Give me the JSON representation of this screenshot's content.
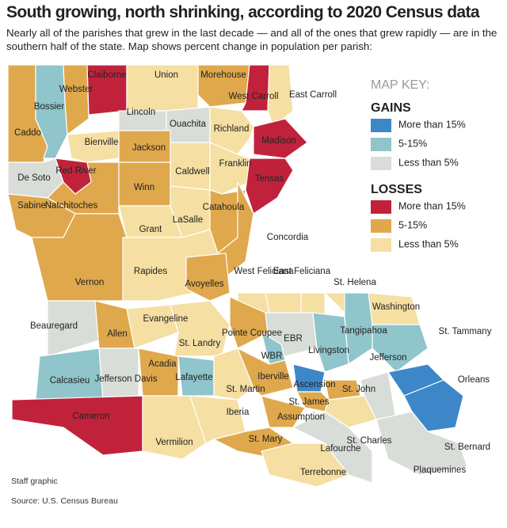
{
  "header": {
    "title": "South growing, north shrinking, according to 2020 Census data",
    "subtitle": "Nearly all of the parishes that grew in the last decade — and all of the ones that grew rapidly — are in the southern half of the state. Map shows percent change in population per parish:"
  },
  "key": {
    "title": "MAP KEY:",
    "groups": [
      {
        "title": "GAINS",
        "items": [
          {
            "label": "More than 15%",
            "color": "#3d87c9"
          },
          {
            "label": "5-15%",
            "color": "#8fc5cb"
          },
          {
            "label": "Less than 5%",
            "color": "#d9ddd8"
          }
        ]
      },
      {
        "title": "LOSSES",
        "items": [
          {
            "label": "More than 15%",
            "color": "#c1223b"
          },
          {
            "label": "5-15%",
            "color": "#dfa84c"
          },
          {
            "label": "Less than 5%",
            "color": "#f5dfa2"
          }
        ]
      }
    ]
  },
  "parishes": [
    {
      "name": "Caddo",
      "color": "#dfa84c"
    },
    {
      "name": "Bossier",
      "color": "#8fc5cb"
    },
    {
      "name": "Webster",
      "color": "#dfa84c"
    },
    {
      "name": "Claiborne",
      "color": "#c1223b"
    },
    {
      "name": "Union",
      "color": "#f5dfa2"
    },
    {
      "name": "Morehouse",
      "color": "#dfa84c"
    },
    {
      "name": "West Carroll",
      "color": "#c1223b"
    },
    {
      "name": "East Carroll",
      "color": "#f5dfa2"
    },
    {
      "name": "Lincoln",
      "color": "#d9ddd8"
    },
    {
      "name": "Ouachita",
      "color": "#d9ddd8"
    },
    {
      "name": "Richland",
      "color": "#f5dfa2"
    },
    {
      "name": "Madison",
      "color": "#c1223b"
    },
    {
      "name": "Bienville",
      "color": "#f5dfa2"
    },
    {
      "name": "Jackson",
      "color": "#dfa84c"
    },
    {
      "name": "Caldwell",
      "color": "#f5dfa2"
    },
    {
      "name": "Franklin",
      "color": "#f5dfa2"
    },
    {
      "name": "Tensas",
      "color": "#c1223b"
    },
    {
      "name": "De Soto",
      "color": "#d9ddd8"
    },
    {
      "name": "Natchitoches",
      "color": "#dfa84c"
    },
    {
      "name": "Red River",
      "color": "#c1223b"
    },
    {
      "name": "Winn",
      "color": "#dfa84c"
    },
    {
      "name": "Grant",
      "color": "#f5dfa2"
    },
    {
      "name": "LaSalle",
      "color": "#f5dfa2"
    },
    {
      "name": "Catahoula",
      "color": "#dfa84c"
    },
    {
      "name": "Concordia",
      "color": "#dfa84c"
    },
    {
      "name": "Sabine",
      "color": "#dfa84c"
    },
    {
      "name": "Vernon",
      "color": "#dfa84c"
    },
    {
      "name": "Rapides",
      "color": "#f5dfa2"
    },
    {
      "name": "Avoyelles",
      "color": "#dfa84c"
    },
    {
      "name": "West Feliciana",
      "color": "#f5dfa2"
    },
    {
      "name": "East Feliciana",
      "color": "#f5dfa2"
    },
    {
      "name": "St. Helena",
      "color": "#f5dfa2"
    },
    {
      "name": "Washington",
      "color": "#f5dfa2"
    },
    {
      "name": "Beauregard",
      "color": "#d9ddd8"
    },
    {
      "name": "Allen",
      "color": "#dfa84c"
    },
    {
      "name": "Evangeline",
      "color": "#f5dfa2"
    },
    {
      "name": "St. Landry",
      "color": "#f5dfa2"
    },
    {
      "name": "Pointe Coupee",
      "color": "#dfa84c"
    },
    {
      "name": "EBR",
      "color": "#d9ddd8"
    },
    {
      "name": "WBR",
      "color": "#8fc5cb"
    },
    {
      "name": "Livingston",
      "color": "#8fc5cb"
    },
    {
      "name": "Tangipahoa",
      "color": "#8fc5cb"
    },
    {
      "name": "St. Tammany",
      "color": "#8fc5cb"
    },
    {
      "name": "Calcasieu",
      "color": "#8fc5cb"
    },
    {
      "name": "Jefferson Davis",
      "color": "#d9ddd8"
    },
    {
      "name": "Acadia",
      "color": "#dfa84c"
    },
    {
      "name": "Lafayette",
      "color": "#8fc5cb"
    },
    {
      "name": "St. Martin",
      "color": "#f5dfa2"
    },
    {
      "name": "Iberville",
      "color": "#dfa84c"
    },
    {
      "name": "Ascension",
      "color": "#3d87c9"
    },
    {
      "name": "St. John",
      "color": "#dfa84c"
    },
    {
      "name": "St. James",
      "color": "#dfa84c"
    },
    {
      "name": "Cameron",
      "color": "#c1223b"
    },
    {
      "name": "Vermilion",
      "color": "#f5dfa2"
    },
    {
      "name": "Iberia",
      "color": "#f5dfa2"
    },
    {
      "name": "Assumption",
      "color": "#dfa84c"
    },
    {
      "name": "St. Charles",
      "color": "#f5dfa2"
    },
    {
      "name": "Jefferson",
      "color": "#d9ddd8"
    },
    {
      "name": "Orleans",
      "color": "#3d87c9"
    },
    {
      "name": "St. Bernard",
      "color": "#3d87c9"
    },
    {
      "name": "St. Mary",
      "color": "#dfa84c"
    },
    {
      "name": "Lafourche",
      "color": "#d9ddd8"
    },
    {
      "name": "Terrebonne",
      "color": "#f5dfa2"
    },
    {
      "name": "Plaquemines",
      "color": "#d9ddd8"
    }
  ],
  "footer": {
    "credit": "Staff graphic",
    "source": "Source: U.S. Census Bureau"
  }
}
